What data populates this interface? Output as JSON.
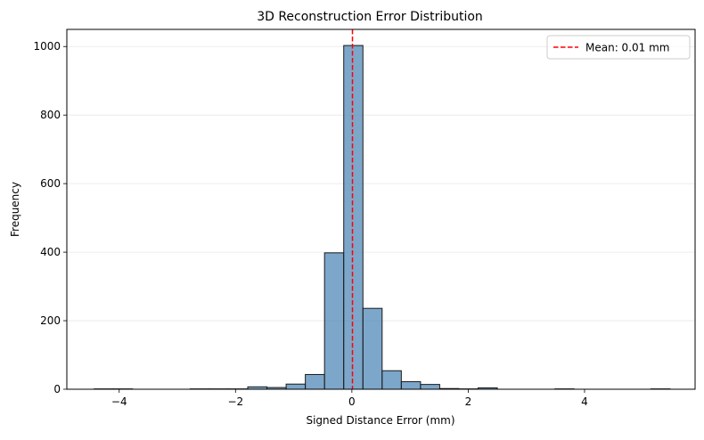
{
  "chart_data": {
    "type": "bar",
    "title": "3D Reconstruction Error Distribution",
    "xlabel": "Signed Distance Error (mm)",
    "ylabel": "Frequency",
    "xlim": [
      -4.9,
      5.9
    ],
    "ylim": [
      0,
      1050
    ],
    "xticks": [
      -4,
      -2,
      0,
      2,
      4
    ],
    "yticks": [
      0,
      200,
      400,
      600,
      800,
      1000
    ],
    "xtick_labels": [
      "−4",
      "−2",
      "0",
      "2",
      "4"
    ],
    "ytick_labels": [
      "0",
      "200",
      "400",
      "600",
      "800",
      "1000"
    ],
    "grid": "y",
    "bar_color": "#4682b4",
    "bar_edge_color": "#1a1a1a",
    "bins": [
      {
        "x0": -4.43,
        "x1": -4.1,
        "count": 1
      },
      {
        "x0": -4.1,
        "x1": -3.77,
        "count": 1
      },
      {
        "x0": -2.78,
        "x1": -2.45,
        "count": 1
      },
      {
        "x0": -2.45,
        "x1": -2.12,
        "count": 1
      },
      {
        "x0": -2.12,
        "x1": -1.79,
        "count": 1
      },
      {
        "x0": -1.79,
        "x1": -1.46,
        "count": 7
      },
      {
        "x0": -1.46,
        "x1": -1.13,
        "count": 5
      },
      {
        "x0": -1.13,
        "x1": -0.8,
        "count": 15
      },
      {
        "x0": -0.8,
        "x1": -0.47,
        "count": 43
      },
      {
        "x0": -0.47,
        "x1": -0.14,
        "count": 398
      },
      {
        "x0": -0.14,
        "x1": 0.19,
        "count": 1003
      },
      {
        "x0": 0.19,
        "x1": 0.52,
        "count": 236
      },
      {
        "x0": 0.52,
        "x1": 0.85,
        "count": 54
      },
      {
        "x0": 0.85,
        "x1": 1.18,
        "count": 22
      },
      {
        "x0": 1.18,
        "x1": 1.51,
        "count": 14
      },
      {
        "x0": 1.51,
        "x1": 1.84,
        "count": 2
      },
      {
        "x0": 1.84,
        "x1": 2.17,
        "count": 1
      },
      {
        "x0": 2.17,
        "x1": 2.5,
        "count": 4
      },
      {
        "x0": 3.49,
        "x1": 3.82,
        "count": 1
      },
      {
        "x0": 5.14,
        "x1": 5.47,
        "count": 1
      }
    ],
    "mean_line": {
      "x": 0.01,
      "color": "#ff0000",
      "style": "dashed",
      "label": "Mean: 0.01 mm"
    },
    "legend_position": "top-right"
  }
}
